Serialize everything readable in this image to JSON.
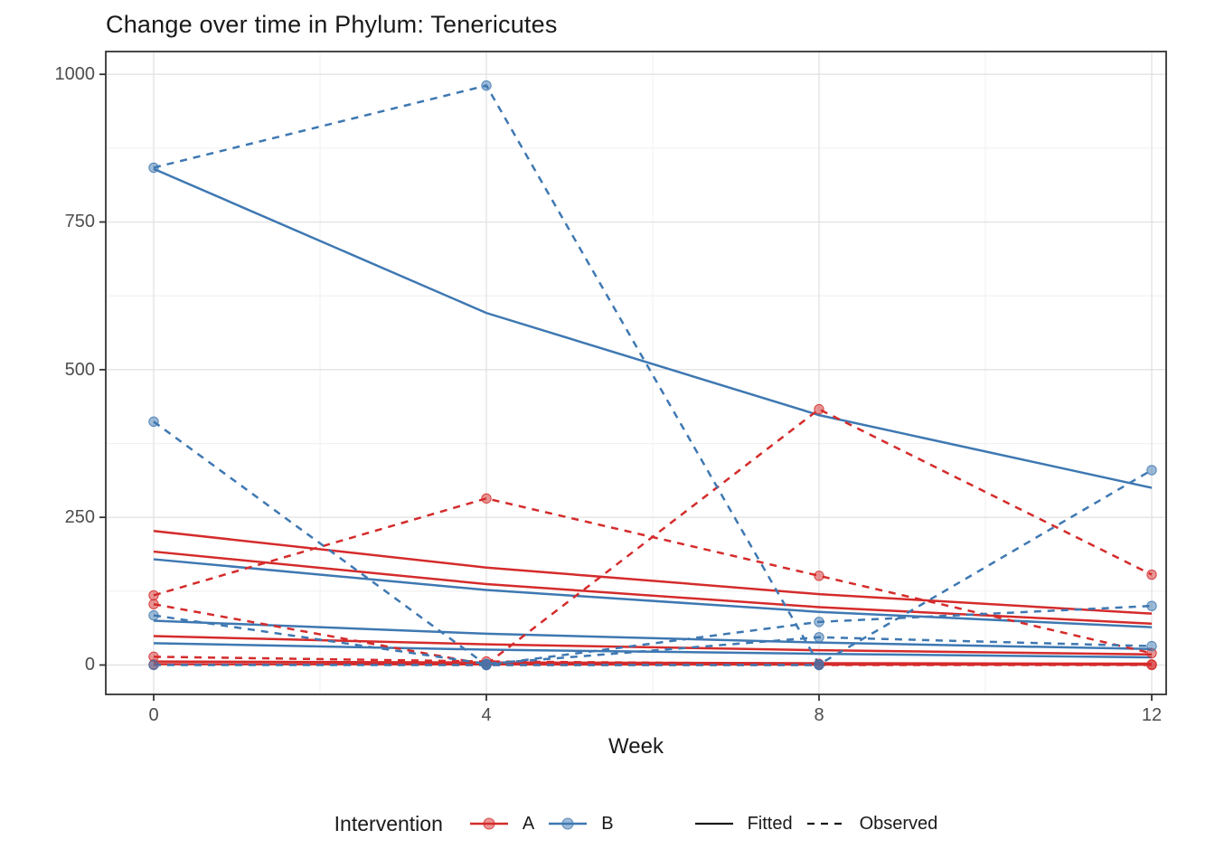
{
  "chart_data": {
    "type": "line",
    "title": "Change over time in Phylum: Tenericutes",
    "xlabel": "Week",
    "ylabel": "",
    "x": [
      0,
      4,
      8,
      12
    ],
    "x_tick_labels": [
      "0",
      "4",
      "8",
      "12"
    ],
    "y_ticks": [
      0,
      250,
      500,
      750,
      1000
    ],
    "y_tick_labels": [
      "0",
      "250",
      "500",
      "750",
      "1000"
    ],
    "y_minor_ticks": [
      125,
      375,
      625,
      875
    ],
    "x_minor_ticks": [
      2,
      6,
      10
    ],
    "ylim": [
      -50,
      1038
    ],
    "xlim": [
      -0.58,
      12.18
    ],
    "grid": "on",
    "legend_position": "bottom",
    "colors": {
      "A": "#d52b2b",
      "B": "#3e78b2",
      "fitted_key": "#1a1a1a",
      "observed_key": "#1a1a1a"
    },
    "series": [
      {
        "name": "A-fitted-1",
        "group": "A",
        "style": "fitted",
        "values": [
          227,
          165,
          120,
          87
        ]
      },
      {
        "name": "A-fitted-2",
        "group": "A",
        "style": "fitted",
        "values": [
          192,
          137,
          98,
          70
        ]
      },
      {
        "name": "A-fitted-3",
        "group": "A",
        "style": "fitted",
        "values": [
          49,
          35,
          25,
          18
        ]
      },
      {
        "name": "A-fitted-4",
        "group": "A",
        "style": "fitted",
        "values": [
          6,
          4.3,
          3.1,
          2.2
        ]
      },
      {
        "name": "A-fitted-5",
        "group": "A",
        "style": "fitted",
        "values": [
          1.5,
          1.1,
          0.8,
          0.6
        ]
      },
      {
        "name": "B-fitted-1",
        "group": "B",
        "style": "fitted",
        "values": [
          840,
          596,
          423,
          300
        ]
      },
      {
        "name": "B-fitted-2",
        "group": "B",
        "style": "fitted",
        "values": [
          179,
          127,
          90,
          64
        ]
      },
      {
        "name": "B-fitted-3",
        "group": "B",
        "style": "fitted",
        "values": [
          75,
          53,
          38,
          27
        ]
      },
      {
        "name": "B-fitted-4",
        "group": "B",
        "style": "fitted",
        "values": [
          37,
          26,
          19,
          13
        ]
      },
      {
        "name": "A-observed-1",
        "group": "A",
        "style": "observed",
        "values": [
          118,
          282,
          151,
          20
        ]
      },
      {
        "name": "A-observed-2",
        "group": "A",
        "style": "observed",
        "values": [
          103,
          1,
          433,
          153
        ]
      },
      {
        "name": "A-observed-3",
        "group": "A",
        "style": "observed",
        "values": [
          14,
          6,
          2,
          1
        ]
      },
      {
        "name": "A-observed-4",
        "group": "A",
        "style": "observed",
        "values": [
          1,
          0,
          0,
          0
        ]
      },
      {
        "name": "B-observed-1",
        "group": "B",
        "style": "observed",
        "values": [
          842,
          981,
          1,
          330
        ]
      },
      {
        "name": "B-observed-2",
        "group": "B",
        "style": "observed",
        "values": [
          412,
          0,
          73,
          100
        ]
      },
      {
        "name": "B-observed-3",
        "group": "B",
        "style": "observed",
        "values": [
          84,
          2,
          47,
          32
        ]
      },
      {
        "name": "B-observed-4",
        "group": "B",
        "style": "observed",
        "values": [
          0,
          0,
          0,
          null
        ]
      }
    ],
    "legend": {
      "title": "Intervention",
      "group_a_label": "A",
      "group_b_label": "B",
      "fitted_label": "Fitted",
      "observed_label": "Observed"
    }
  }
}
